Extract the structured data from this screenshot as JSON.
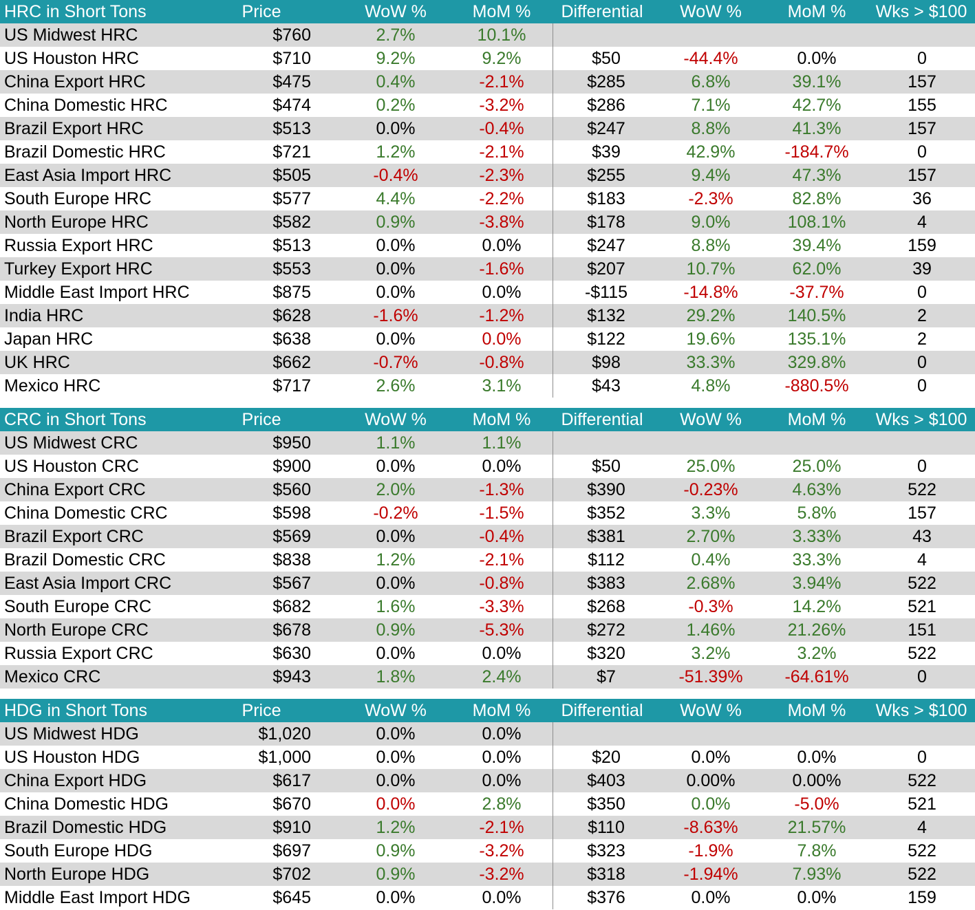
{
  "colors": {
    "header_bg": "#1e98a6",
    "shade": "#d9d9d9",
    "positive": "#3a7a2c",
    "negative": "#c00000"
  },
  "sections": [
    {
      "title": "HRC in Short Tons",
      "headers": [
        "Price",
        "WoW %",
        "MoM %",
        "Differential",
        "WoW %",
        "MoM %",
        "Wks > $100"
      ],
      "rows": [
        [
          "US Midwest HRC",
          "$760",
          "2.7%",
          "10.1%",
          "",
          "",
          "",
          ""
        ],
        [
          "US Houston HRC",
          "$710",
          "9.2%",
          "9.2%",
          "$50",
          "-44.4%",
          "0.0%",
          "0"
        ],
        [
          "China Export HRC",
          "$475",
          "0.4%",
          "-2.1%",
          "$285",
          "6.8%",
          "39.1%",
          "157"
        ],
        [
          "China Domestic HRC",
          "$474",
          "0.2%",
          "-3.2%",
          "$286",
          "7.1%",
          "42.7%",
          "155"
        ],
        [
          "Brazil Export HRC",
          "$513",
          "0.0%",
          "-0.4%",
          "$247",
          "8.8%",
          "41.3%",
          "157"
        ],
        [
          "Brazil Domestic HRC",
          "$721",
          "1.2%",
          "-2.1%",
          "$39",
          "42.9%",
          "-184.7%",
          "0"
        ],
        [
          "East Asia Import HRC",
          "$505",
          "-0.4%",
          "-2.3%",
          "$255",
          "9.4%",
          "47.3%",
          "157"
        ],
        [
          "South Europe HRC",
          "$577",
          "4.4%",
          "-2.2%",
          "$183",
          "-2.3%",
          "82.8%",
          "36"
        ],
        [
          "North Europe HRC",
          "$582",
          "0.9%",
          "-3.8%",
          "$178",
          "9.0%",
          "108.1%",
          "4"
        ],
        [
          "Russia Export HRC",
          "$513",
          "0.0%",
          "0.0%",
          "$247",
          "8.8%",
          "39.4%",
          "159"
        ],
        [
          "Turkey Export HRC",
          "$553",
          "0.0%",
          "-1.6%",
          "$207",
          "10.7%",
          "62.0%",
          "39"
        ],
        [
          "Middle East Import HRC",
          "$875",
          "0.0%",
          "0.0%",
          "-$115",
          "-14.8%",
          "-37.7%",
          "0"
        ],
        [
          "India HRC",
          "$628",
          "-1.6%",
          "-1.2%",
          "$132",
          "29.2%",
          "140.5%",
          "2"
        ],
        [
          "Japan HRC",
          "$638",
          "0.0%",
          "0.0%",
          "$122",
          "19.6%",
          "135.1%",
          "2"
        ],
        [
          "UK HRC",
          "$662",
          "-0.7%",
          "-0.8%",
          "$98",
          "33.3%",
          "329.8%",
          "0"
        ],
        [
          "Mexico HRC",
          "$717",
          "2.6%",
          "3.1%",
          "$43",
          "4.8%",
          "-880.5%",
          "0"
        ]
      ],
      "styles": [
        [
          "",
          "",
          "pos",
          "pos",
          "",
          "",
          "",
          ""
        ],
        [
          "",
          "",
          "pos",
          "pos",
          "",
          "neg",
          "",
          ""
        ],
        [
          "",
          "",
          "pos",
          "neg",
          "",
          "pos",
          "pos",
          ""
        ],
        [
          "",
          "",
          "pos",
          "neg",
          "",
          "pos",
          "pos",
          ""
        ],
        [
          "",
          "",
          "",
          "neg",
          "",
          "pos",
          "pos",
          ""
        ],
        [
          "",
          "",
          "pos",
          "neg",
          "",
          "pos",
          "neg",
          ""
        ],
        [
          "",
          "",
          "neg",
          "neg",
          "",
          "pos",
          "pos",
          ""
        ],
        [
          "",
          "",
          "pos",
          "neg",
          "",
          "neg",
          "pos",
          ""
        ],
        [
          "",
          "",
          "pos",
          "neg",
          "",
          "pos",
          "pos",
          ""
        ],
        [
          "",
          "",
          "",
          "",
          "",
          "pos",
          "pos",
          ""
        ],
        [
          "",
          "",
          "",
          "neg",
          "",
          "pos",
          "pos",
          ""
        ],
        [
          "",
          "",
          "",
          "",
          "",
          "neg",
          "neg",
          ""
        ],
        [
          "",
          "",
          "neg",
          "neg",
          "",
          "pos",
          "pos",
          ""
        ],
        [
          "",
          "",
          "",
          "neg",
          "",
          "pos",
          "pos",
          ""
        ],
        [
          "",
          "",
          "neg",
          "neg",
          "",
          "pos",
          "pos",
          ""
        ],
        [
          "",
          "",
          "pos",
          "pos",
          "",
          "pos",
          "neg",
          ""
        ]
      ]
    },
    {
      "title": "CRC in Short Tons",
      "headers": [
        "Price",
        "WoW %",
        "MoM %",
        "Differential",
        "WoW %",
        "MoM %",
        "Wks > $100"
      ],
      "rows": [
        [
          "US Midwest CRC",
          "$950",
          "1.1%",
          "1.1%",
          "",
          "",
          "",
          ""
        ],
        [
          "US Houston CRC",
          "$900",
          "0.0%",
          "0.0%",
          "$50",
          "25.0%",
          "25.0%",
          "0"
        ],
        [
          "China Export CRC",
          "$560",
          "2.0%",
          "-1.3%",
          "$390",
          "-0.23%",
          "4.63%",
          "522"
        ],
        [
          "China Domestic CRC",
          "$598",
          "-0.2%",
          "-1.5%",
          "$352",
          "3.3%",
          "5.8%",
          "157"
        ],
        [
          "Brazil Export CRC",
          "$569",
          "0.0%",
          "-0.4%",
          "$381",
          "2.70%",
          "3.33%",
          "43"
        ],
        [
          "Brazil Domestic CRC",
          "$838",
          "1.2%",
          "-2.1%",
          "$112",
          "0.4%",
          "33.3%",
          "4"
        ],
        [
          "East Asia Import CRC",
          "$567",
          "0.0%",
          "-0.8%",
          "$383",
          "2.68%",
          "3.94%",
          "522"
        ],
        [
          "South Europe CRC",
          "$682",
          "1.6%",
          "-3.3%",
          "$268",
          "-0.3%",
          "14.2%",
          "521"
        ],
        [
          "North Europe CRC",
          "$678",
          "0.9%",
          "-5.3%",
          "$272",
          "1.46%",
          "21.26%",
          "151"
        ],
        [
          "Russia Export CRC",
          "$630",
          "0.0%",
          "0.0%",
          "$320",
          "3.2%",
          "3.2%",
          "522"
        ],
        [
          "Mexico CRC",
          "$943",
          "1.8%",
          "2.4%",
          "$7",
          "-51.39%",
          "-64.61%",
          "0"
        ]
      ],
      "styles": [
        [
          "",
          "",
          "pos",
          "pos",
          "",
          "",
          "",
          ""
        ],
        [
          "",
          "",
          "",
          "",
          "",
          "pos",
          "pos",
          ""
        ],
        [
          "",
          "",
          "pos",
          "neg",
          "",
          "neg",
          "pos",
          ""
        ],
        [
          "",
          "",
          "neg",
          "neg",
          "",
          "pos",
          "pos",
          ""
        ],
        [
          "",
          "",
          "",
          "neg",
          "",
          "pos",
          "pos",
          ""
        ],
        [
          "",
          "",
          "pos",
          "neg",
          "",
          "pos",
          "pos",
          ""
        ],
        [
          "",
          "",
          "",
          "neg",
          "",
          "pos",
          "pos",
          ""
        ],
        [
          "",
          "",
          "pos",
          "neg",
          "",
          "neg",
          "pos",
          ""
        ],
        [
          "",
          "",
          "pos",
          "neg",
          "",
          "pos",
          "pos",
          ""
        ],
        [
          "",
          "",
          "",
          "",
          "",
          "pos",
          "pos",
          ""
        ],
        [
          "",
          "",
          "pos",
          "pos",
          "",
          "neg",
          "neg",
          ""
        ]
      ]
    },
    {
      "title": "HDG in Short Tons",
      "headers": [
        "Price",
        "WoW %",
        "MoM %",
        "Differential",
        "WoW %",
        "MoM %",
        "Wks > $100"
      ],
      "rows": [
        [
          "US Midwest HDG",
          "$1,020",
          "0.0%",
          "0.0%",
          "",
          "",
          "",
          ""
        ],
        [
          "US Houston HDG",
          "$1,000",
          "0.0%",
          "0.0%",
          "$20",
          "0.0%",
          "0.0%",
          "0"
        ],
        [
          "China Export HDG",
          "$617",
          "0.0%",
          "0.0%",
          "$403",
          "0.00%",
          "0.00%",
          "522"
        ],
        [
          "China Domestic HDG",
          "$670",
          "0.0%",
          "2.8%",
          "$350",
          "0.0%",
          "-5.0%",
          "521"
        ],
        [
          "Brazil Domestic HDG",
          "$910",
          "1.2%",
          "-2.1%",
          "$110",
          "-8.63%",
          "21.57%",
          "4"
        ],
        [
          "South Europe HDG",
          "$697",
          "0.9%",
          "-3.2%",
          "$323",
          "-1.9%",
          "7.8%",
          "522"
        ],
        [
          "North Europe HDG",
          "$702",
          "0.9%",
          "-3.2%",
          "$318",
          "-1.94%",
          "7.93%",
          "522"
        ],
        [
          "Middle East Import HDG",
          "$645",
          "0.0%",
          "0.0%",
          "$376",
          "0.0%",
          "0.0%",
          "159"
        ]
      ],
      "styles": [
        [
          "",
          "",
          "",
          "",
          "",
          "",
          "",
          ""
        ],
        [
          "",
          "",
          "",
          "",
          "",
          "",
          "",
          ""
        ],
        [
          "",
          "",
          "",
          "",
          "",
          "",
          "",
          ""
        ],
        [
          "",
          "",
          "neg",
          "pos",
          "",
          "pos",
          "neg",
          ""
        ],
        [
          "",
          "",
          "pos",
          "neg",
          "",
          "neg",
          "pos",
          ""
        ],
        [
          "",
          "",
          "pos",
          "neg",
          "",
          "neg",
          "pos",
          ""
        ],
        [
          "",
          "",
          "pos",
          "neg",
          "",
          "neg",
          "pos",
          ""
        ],
        [
          "",
          "",
          "",
          "",
          "",
          "",
          "",
          ""
        ]
      ]
    }
  ]
}
